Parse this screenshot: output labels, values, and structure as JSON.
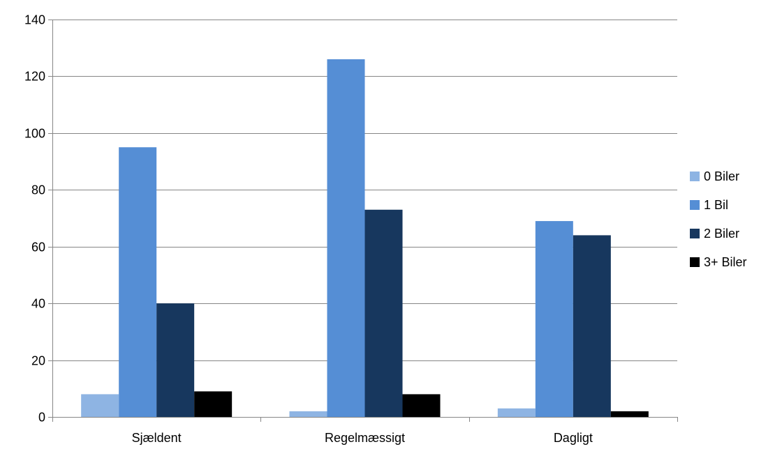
{
  "chart_data": {
    "type": "bar",
    "title": "",
    "xlabel": "",
    "ylabel": "",
    "categories": [
      "Sjældent",
      "Regelmæssigt",
      "Dagligt"
    ],
    "series": [
      {
        "name": "0 Biler",
        "values": [
          8,
          2,
          3
        ],
        "color": "#8eb4e3"
      },
      {
        "name": "1 Bil",
        "values": [
          95,
          126,
          69
        ],
        "color": "#558ed5"
      },
      {
        "name": "2 Biler",
        "values": [
          40,
          73,
          64
        ],
        "color": "#17375e"
      },
      {
        "name": "3+ Biler",
        "values": [
          9,
          8,
          2
        ],
        "color": "#000000"
      }
    ],
    "ylim": [
      0,
      140
    ],
    "yticks": [
      0,
      20,
      40,
      60,
      80,
      100,
      120,
      140
    ],
    "grid": true,
    "legend_position": "right"
  }
}
